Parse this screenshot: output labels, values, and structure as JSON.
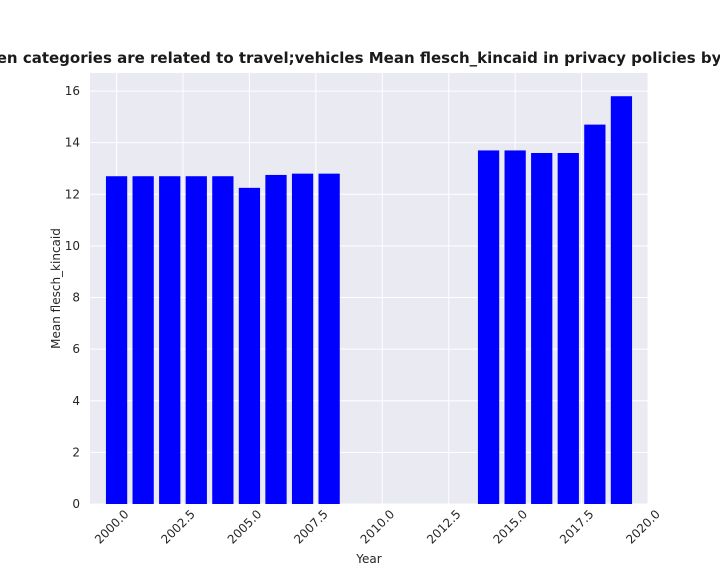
{
  "colors": {
    "bar": "#0000ff",
    "plot_bg": "#eaeaf2",
    "grid": "#ffffff"
  },
  "chart_data": {
    "type": "bar",
    "title": "when categories are related to travel;vehicles Mean flesch_kincaid in privacy policies by Year",
    "xlabel": "Year",
    "ylabel": "Mean flesch_kincaid",
    "x": [
      2000,
      2001,
      2002,
      2003,
      2004,
      2005,
      2006,
      2007,
      2008,
      2014,
      2015,
      2016,
      2017,
      2018,
      2019
    ],
    "values": [
      12.7,
      12.7,
      12.7,
      12.7,
      12.7,
      12.25,
      12.75,
      12.8,
      12.8,
      13.7,
      13.7,
      13.6,
      13.6,
      14.7,
      15.8
    ],
    "xlim": [
      1999.0,
      2020.0
    ],
    "ylim": [
      0,
      16.7
    ],
    "xticks": [
      "2000.0",
      "2002.5",
      "2005.0",
      "2007.5",
      "2010.0",
      "2012.5",
      "2015.0",
      "2017.5",
      "2020.0"
    ],
    "yticks": [
      "0",
      "2",
      "4",
      "6",
      "8",
      "10",
      "12",
      "14",
      "16"
    ],
    "grid": true
  }
}
